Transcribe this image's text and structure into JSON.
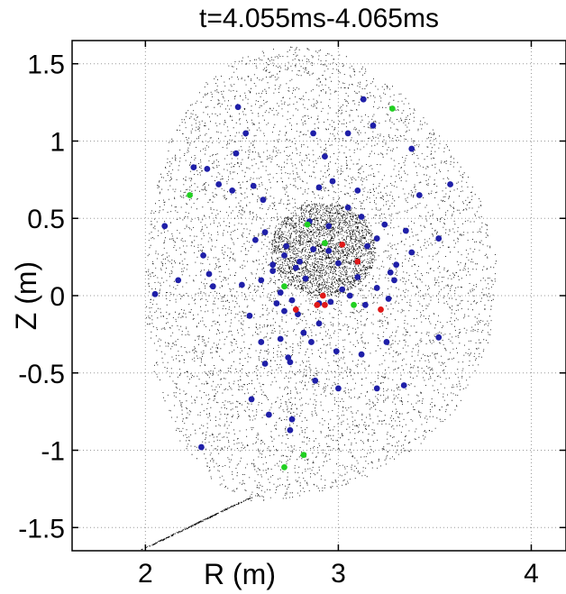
{
  "chart_data": {
    "type": "scatter",
    "title": "t=4.055ms-4.065ms",
    "xlabel": "R (m)",
    "ylabel": "Z (m)",
    "xlim": [
      1.62,
      4.18
    ],
    "ylim": [
      -1.65,
      1.65
    ],
    "xticks": [
      2,
      3,
      4
    ],
    "xtick_labels": [
      "2",
      "3",
      "4"
    ],
    "yticks": [
      -1.5,
      -1,
      -0.5,
      0,
      0.5,
      1,
      1.5
    ],
    "ytick_labels": [
      "-1.5",
      "-1",
      "-0.5",
      "0",
      "0.5",
      "1",
      "1.5"
    ],
    "grid": true,
    "background_cloud": {
      "name": "particle cloud",
      "color": "#000000",
      "boundary": [
        [
          2.0,
          0.2
        ],
        [
          2.03,
          0.6
        ],
        [
          2.12,
          1.0
        ],
        [
          2.28,
          1.35
        ],
        [
          2.5,
          1.56
        ],
        [
          2.78,
          1.63
        ],
        [
          3.05,
          1.55
        ],
        [
          3.3,
          1.35
        ],
        [
          3.52,
          1.05
        ],
        [
          3.72,
          0.68
        ],
        [
          3.83,
          0.2
        ],
        [
          3.78,
          -0.3
        ],
        [
          3.62,
          -0.72
        ],
        [
          3.38,
          -1.02
        ],
        [
          3.1,
          -1.2
        ],
        [
          2.8,
          -1.3
        ],
        [
          2.55,
          -1.33
        ],
        [
          2.35,
          -1.2
        ],
        [
          2.18,
          -0.95
        ],
        [
          2.05,
          -0.55
        ],
        [
          2.0,
          -0.15
        ]
      ],
      "divertor_leg": [
        [
          2.55,
          -1.3
        ],
        [
          2.0,
          -1.63
        ]
      ],
      "core_center": [
        2.92,
        0.3
      ]
    },
    "series": [
      {
        "name": "blue markers",
        "color": "#1f1fa8",
        "points": [
          [
            2.48,
            1.22
          ],
          [
            2.52,
            1.05
          ],
          [
            2.47,
            0.92
          ],
          [
            2.25,
            0.83
          ],
          [
            2.32,
            0.82
          ],
          [
            2.38,
            0.72
          ],
          [
            2.45,
            0.68
          ],
          [
            2.56,
            0.71
          ],
          [
            2.61,
            0.62
          ],
          [
            2.1,
            0.45
          ],
          [
            2.05,
            0.01
          ],
          [
            2.17,
            0.1
          ],
          [
            2.3,
            0.26
          ],
          [
            2.33,
            0.14
          ],
          [
            2.5,
            0.07
          ],
          [
            2.57,
            0.36
          ],
          [
            2.66,
            0.16
          ],
          [
            2.6,
            0.1
          ],
          [
            2.66,
            0.2
          ],
          [
            2.72,
            0.26
          ],
          [
            2.78,
            0.18
          ],
          [
            2.83,
            0.11
          ],
          [
            2.7,
            0.02
          ],
          [
            2.76,
            -0.03
          ],
          [
            2.68,
            -0.05
          ],
          [
            2.72,
            -0.1
          ],
          [
            2.79,
            -0.12
          ],
          [
            2.9,
            -0.05
          ],
          [
            2.96,
            -0.04
          ],
          [
            3.02,
            0.04
          ],
          [
            3.06,
            0.0
          ],
          [
            3.1,
            0.12
          ],
          [
            3.14,
            -0.06
          ],
          [
            3.2,
            0.05
          ],
          [
            3.26,
            -0.02
          ],
          [
            3.29,
            0.1
          ],
          [
            3.3,
            0.2
          ],
          [
            3.38,
            0.28
          ],
          [
            3.35,
            0.42
          ],
          [
            3.24,
            0.46
          ],
          [
            3.12,
            0.51
          ],
          [
            3.05,
            0.57
          ],
          [
            3.1,
            0.68
          ],
          [
            2.97,
            0.74
          ],
          [
            2.9,
            0.7
          ],
          [
            2.85,
            0.48
          ],
          [
            2.8,
            0.22
          ],
          [
            2.87,
            0.3
          ],
          [
            2.95,
            0.29
          ],
          [
            3.0,
            0.21
          ],
          [
            3.2,
            0.37
          ],
          [
            2.87,
            1.05
          ],
          [
            2.93,
            0.9
          ],
          [
            3.05,
            1.05
          ],
          [
            3.13,
            1.27
          ],
          [
            3.18,
            1.1
          ],
          [
            3.38,
            0.95
          ],
          [
            3.42,
            0.65
          ],
          [
            3.58,
            0.72
          ],
          [
            3.52,
            0.37
          ],
          [
            3.52,
            -0.27
          ],
          [
            3.34,
            -0.58
          ],
          [
            3.2,
            -0.6
          ],
          [
            2.88,
            -0.55
          ],
          [
            2.75,
            -0.43
          ],
          [
            2.62,
            -0.44
          ],
          [
            2.6,
            -0.3
          ],
          [
            2.7,
            -0.28
          ],
          [
            2.82,
            -0.24
          ],
          [
            2.86,
            -0.3
          ],
          [
            2.99,
            -0.36
          ],
          [
            3.12,
            -0.38
          ],
          [
            3.25,
            -0.3
          ],
          [
            2.74,
            -0.4
          ],
          [
            2.55,
            -0.67
          ],
          [
            2.64,
            -0.77
          ],
          [
            2.76,
            -0.8
          ],
          [
            2.75,
            -0.87
          ],
          [
            2.29,
            -0.98
          ],
          [
            3.0,
            -0.6
          ],
          [
            2.9,
            -0.18
          ],
          [
            2.54,
            -0.13
          ],
          [
            3.15,
            0.32
          ],
          [
            2.95,
            0.45
          ],
          [
            2.73,
            0.32
          ],
          [
            3.1,
            0.22
          ],
          [
            3.27,
            0.15
          ],
          [
            2.62,
            0.41
          ],
          [
            2.35,
            0.06
          ]
        ]
      },
      {
        "name": "red markers",
        "color": "#e01818",
        "points": [
          [
            3.02,
            0.33
          ],
          [
            3.1,
            0.22
          ],
          [
            2.92,
            0.0
          ],
          [
            2.89,
            -0.06
          ],
          [
            2.93,
            -0.06
          ],
          [
            2.78,
            -0.09
          ],
          [
            3.22,
            -0.09
          ]
        ]
      },
      {
        "name": "green markers",
        "color": "#22d022",
        "points": [
          [
            3.28,
            1.21
          ],
          [
            2.23,
            0.65
          ],
          [
            2.84,
            0.46
          ],
          [
            2.93,
            0.34
          ],
          [
            2.72,
            0.06
          ],
          [
            3.08,
            -0.06
          ],
          [
            2.82,
            -1.03
          ],
          [
            2.72,
            -1.11
          ]
        ]
      }
    ]
  }
}
